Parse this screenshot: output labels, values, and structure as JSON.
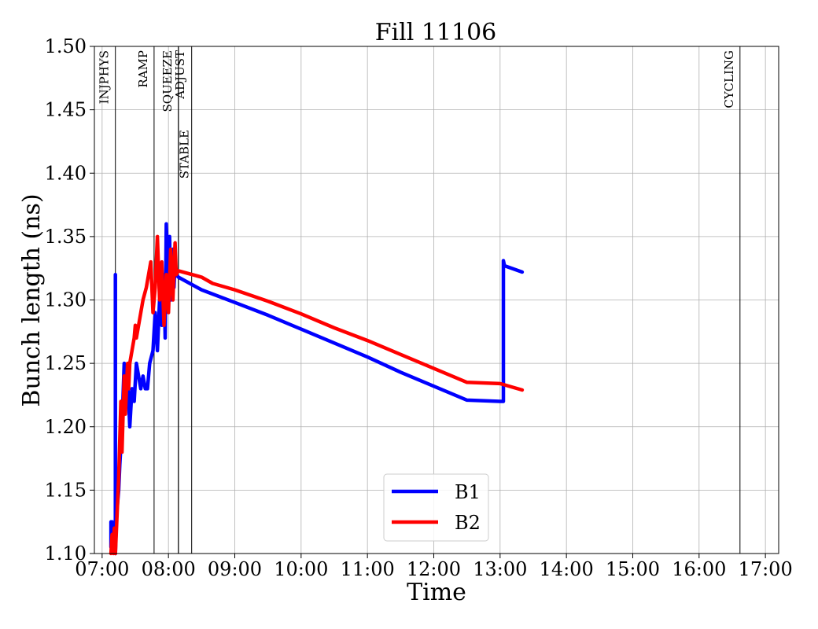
{
  "chart_data": {
    "type": "line",
    "title": "Fill 11106",
    "xlabel": "Time",
    "ylabel": "Bunch length (ns)",
    "xlim": [
      "06:53",
      "17:12"
    ],
    "ylim": [
      1.1,
      1.5
    ],
    "x_ticks": [
      "07:00",
      "08:00",
      "09:00",
      "10:00",
      "11:00",
      "12:00",
      "13:00",
      "14:00",
      "15:00",
      "16:00",
      "17:00"
    ],
    "y_ticks": [
      "1.10",
      "1.15",
      "1.20",
      "1.25",
      "1.30",
      "1.35",
      "1.40",
      "1.45",
      "1.50"
    ],
    "grid": true,
    "legend_position": "bottom-center",
    "phases": [
      {
        "label": "INJPHYS",
        "time": "07:12"
      },
      {
        "label": "RAMP",
        "time": "07:47"
      },
      {
        "label": "SQUEEZE",
        "time": "08:09"
      },
      {
        "label": "ADJUST",
        "time": "08:09"
      },
      {
        "label": "STABLE",
        "time": "08:21"
      },
      {
        "label": "CYCLING",
        "time": "16:37"
      }
    ],
    "series": [
      {
        "name": "B1",
        "color": "#0000ff",
        "points": [
          [
            "07:08",
            1.105
          ],
          [
            "07:08",
            1.125
          ],
          [
            "07:09",
            1.125
          ],
          [
            "07:10",
            1.11
          ],
          [
            "07:12",
            1.1
          ],
          [
            "07:12",
            1.32
          ],
          [
            "07:12",
            1.1
          ],
          [
            "07:13",
            1.13
          ],
          [
            "07:15",
            1.15
          ],
          [
            "07:16",
            1.17
          ],
          [
            "07:18",
            1.2
          ],
          [
            "07:20",
            1.25
          ],
          [
            "07:21",
            1.22
          ],
          [
            "07:23",
            1.24
          ],
          [
            "07:25",
            1.2
          ],
          [
            "07:27",
            1.23
          ],
          [
            "07:29",
            1.22
          ],
          [
            "07:31",
            1.25
          ],
          [
            "07:33",
            1.24
          ],
          [
            "07:35",
            1.23
          ],
          [
            "07:37",
            1.24
          ],
          [
            "07:39",
            1.23
          ],
          [
            "07:41",
            1.23
          ],
          [
            "07:43",
            1.25
          ],
          [
            "07:46",
            1.26
          ],
          [
            "07:48",
            1.29
          ],
          [
            "07:50",
            1.26
          ],
          [
            "07:52",
            1.3
          ],
          [
            "07:54",
            1.28
          ],
          [
            "07:56",
            1.32
          ],
          [
            "07:57",
            1.27
          ],
          [
            "07:58",
            1.36
          ],
          [
            "08:00",
            1.31
          ],
          [
            "08:01",
            1.35
          ],
          [
            "08:02",
            1.3
          ],
          [
            "08:04",
            1.34
          ],
          [
            "08:05",
            1.31
          ],
          [
            "08:06",
            1.33
          ],
          [
            "08:07",
            1.32
          ],
          [
            "08:09",
            1.318
          ],
          [
            "08:30",
            1.308
          ],
          [
            "09:00",
            1.298
          ],
          [
            "09:30",
            1.288
          ],
          [
            "10:00",
            1.277
          ],
          [
            "10:30",
            1.266
          ],
          [
            "11:00",
            1.255
          ],
          [
            "11:30",
            1.243
          ],
          [
            "12:00",
            1.232
          ],
          [
            "12:30",
            1.221
          ],
          [
            "13:00",
            1.22
          ],
          [
            "13:03",
            1.22
          ],
          [
            "13:03",
            1.331
          ],
          [
            "13:04",
            1.327
          ],
          [
            "13:20",
            1.322
          ]
        ]
      },
      {
        "name": "B2",
        "color": "#ff0000",
        "points": [
          [
            "07:08",
            1.1
          ],
          [
            "07:09",
            1.115
          ],
          [
            "07:10",
            1.1
          ],
          [
            "07:11",
            1.12
          ],
          [
            "07:12",
            1.1
          ],
          [
            "07:14",
            1.14
          ],
          [
            "07:15",
            1.16
          ],
          [
            "07:17",
            1.22
          ],
          [
            "07:18",
            1.18
          ],
          [
            "07:20",
            1.24
          ],
          [
            "07:21",
            1.21
          ],
          [
            "07:23",
            1.25
          ],
          [
            "07:24",
            1.23
          ],
          [
            "07:25",
            1.25
          ],
          [
            "07:27",
            1.26
          ],
          [
            "07:29",
            1.27
          ],
          [
            "07:30",
            1.28
          ],
          [
            "07:31",
            1.27
          ],
          [
            "07:33",
            1.28
          ],
          [
            "07:37",
            1.3
          ],
          [
            "07:40",
            1.31
          ],
          [
            "07:44",
            1.33
          ],
          [
            "07:46",
            1.29
          ],
          [
            "07:48",
            1.31
          ],
          [
            "07:50",
            1.35
          ],
          [
            "07:52",
            1.3
          ],
          [
            "07:54",
            1.33
          ],
          [
            "07:56",
            1.28
          ],
          [
            "07:58",
            1.32
          ],
          [
            "08:00",
            1.29
          ],
          [
            "08:02",
            1.34
          ],
          [
            "08:04",
            1.3
          ],
          [
            "08:06",
            1.345
          ],
          [
            "08:07",
            1.32
          ],
          [
            "08:09",
            1.323
          ],
          [
            "08:30",
            1.318
          ],
          [
            "08:40",
            1.313
          ],
          [
            "09:00",
            1.308
          ],
          [
            "09:30",
            1.299
          ],
          [
            "10:00",
            1.289
          ],
          [
            "10:30",
            1.278
          ],
          [
            "11:00",
            1.268
          ],
          [
            "11:30",
            1.257
          ],
          [
            "12:00",
            1.246
          ],
          [
            "12:30",
            1.235
          ],
          [
            "13:00",
            1.234
          ],
          [
            "13:20",
            1.229
          ]
        ]
      }
    ]
  }
}
